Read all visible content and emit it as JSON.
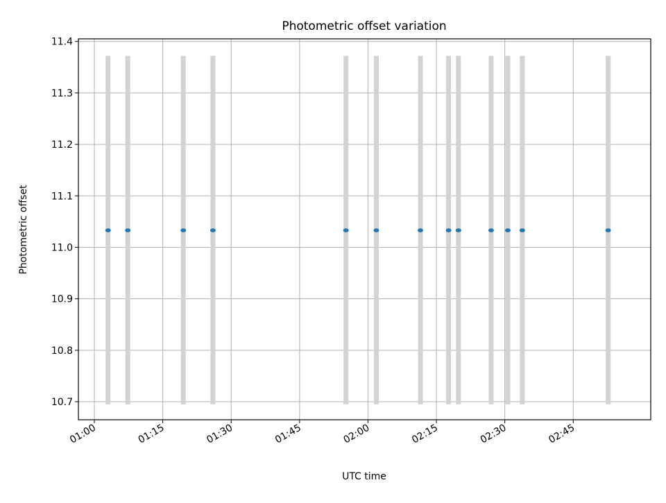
{
  "chart_data": {
    "type": "scatter",
    "title": "Photometric offset variation",
    "xlabel": "UTC time",
    "ylabel": "Photometric offset",
    "x_axis": {
      "kind": "time",
      "range": [
        "00:56:30",
        "03:02:00"
      ],
      "ticks": [
        "01:00",
        "01:15",
        "01:30",
        "01:45",
        "02:00",
        "02:15",
        "02:30",
        "02:45"
      ],
      "tick_label_rotation_deg": 30
    },
    "y_axis": {
      "range": [
        10.665,
        11.405
      ],
      "ticks": [
        "10.7",
        "10.8",
        "10.9",
        "11.0",
        "11.1",
        "11.2",
        "11.3",
        "11.4"
      ]
    },
    "grid": true,
    "error_bars": {
      "color": "#d3d3d3",
      "low": 10.695,
      "high": 11.372
    },
    "series": [
      {
        "color": "#1f77b4",
        "points": [
          {
            "x": "01:03:00",
            "y": 11.033
          },
          {
            "x": "01:07:20",
            "y": 11.033
          },
          {
            "x": "01:19:30",
            "y": 11.033
          },
          {
            "x": "01:26:00",
            "y": 11.033
          },
          {
            "x": "01:55:10",
            "y": 11.033
          },
          {
            "x": "02:01:50",
            "y": 11.033
          },
          {
            "x": "02:11:30",
            "y": 11.033
          },
          {
            "x": "02:17:40",
            "y": 11.033
          },
          {
            "x": "02:19:50",
            "y": 11.033
          },
          {
            "x": "02:27:00",
            "y": 11.033
          },
          {
            "x": "02:30:40",
            "y": 11.033
          },
          {
            "x": "02:33:50",
            "y": 11.033
          },
          {
            "x": "02:52:40",
            "y": 11.033
          }
        ]
      }
    ]
  }
}
